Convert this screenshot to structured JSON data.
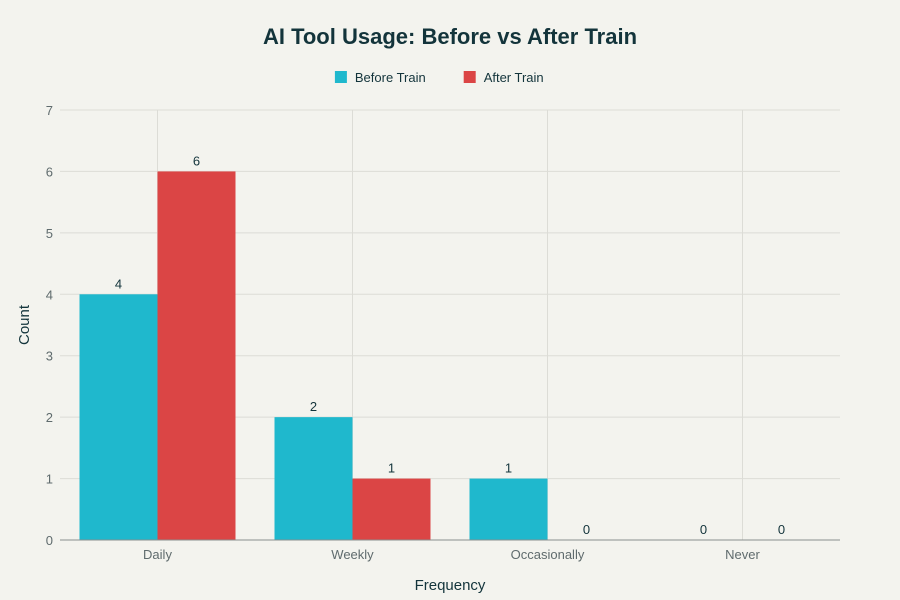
{
  "chart_data": {
    "type": "bar",
    "title": "AI Tool Usage: Before vs After Train",
    "xlabel": "Frequency",
    "ylabel": "Count",
    "categories": [
      "Daily",
      "Weekly",
      "Occasionally",
      "Never"
    ],
    "series": [
      {
        "name": "Before Train",
        "values": [
          4,
          2,
          1,
          0
        ],
        "color": "#1fb8cd"
      },
      {
        "name": "After Train",
        "values": [
          6,
          1,
          0,
          0
        ],
        "color": "#db4545"
      }
    ],
    "ylim": [
      0,
      7
    ],
    "yticks": [
      "0",
      "1",
      "2",
      "3",
      "4",
      "5",
      "6",
      "7"
    ],
    "grid": true,
    "legend_position": "top-center"
  }
}
